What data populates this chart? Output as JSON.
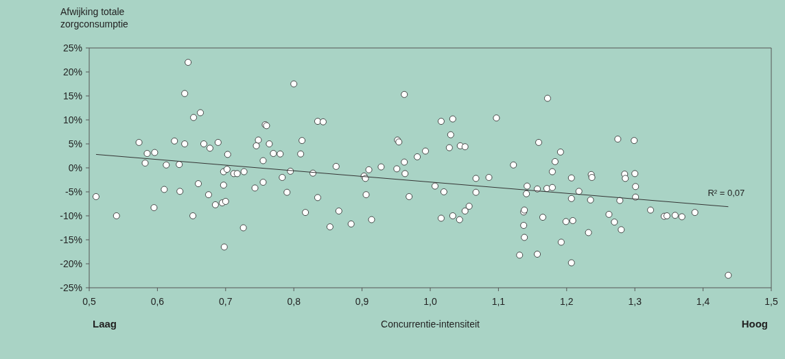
{
  "chart_data": {
    "type": "scatter",
    "ylabel": "Afwijking totale zorgconsumptie",
    "xlabel": "Concurrentie-intensiteit",
    "annotations": [
      "Laag",
      "Hoog",
      {
        "text": "R² = 0,07",
        "x": 1.437,
        "y": -8.1
      }
    ],
    "xlim": [
      0.5,
      1.5
    ],
    "xticks": [
      {
        "value": 0.5,
        "label": "0,5"
      },
      {
        "value": 0.6,
        "label": "0,6"
      },
      {
        "value": 0.7,
        "label": "0,7"
      },
      {
        "value": 0.8,
        "label": "0,8"
      },
      {
        "value": 0.9,
        "label": "0,9"
      },
      {
        "value": 1.0,
        "label": "1,0"
      },
      {
        "value": 1.1,
        "label": "1,1"
      },
      {
        "value": 1.2,
        "label": "1,2"
      },
      {
        "value": 1.3,
        "label": "1,3"
      },
      {
        "value": 1.4,
        "label": "1,4"
      },
      {
        "value": 1.5,
        "label": "1,5"
      }
    ],
    "ylim": [
      -25,
      25
    ],
    "yticks": [
      {
        "value": -25,
        "label": "-25%"
      },
      {
        "value": -20,
        "label": "-20%"
      },
      {
        "value": -15,
        "label": "-15%"
      },
      {
        "value": -10,
        "label": "-10%"
      },
      {
        "value": -5,
        "label": "-5%"
      },
      {
        "value": 0,
        "label": "0%"
      },
      {
        "value": 5,
        "label": "5%"
      },
      {
        "value": 10,
        "label": "10%"
      },
      {
        "value": 15,
        "label": "15%"
      },
      {
        "value": 20,
        "label": "20%"
      },
      {
        "value": 25,
        "label": "25%"
      }
    ],
    "grid": false,
    "series": [
      {
        "marker": "circle",
        "color": "#ffffff",
        "x": [
          0.51,
          0.54,
          0.573,
          0.582,
          0.585,
          0.596,
          0.595,
          0.61,
          0.613,
          0.625,
          0.632,
          0.633,
          0.64,
          0.64,
          0.645,
          0.653,
          0.652,
          0.66,
          0.663,
          0.668,
          0.675,
          0.677,
          0.685,
          0.689,
          0.695,
          0.697,
          0.697,
          0.698,
          0.7,
          0.702,
          0.703,
          0.712,
          0.717,
          0.727,
          0.726,
          0.743,
          0.745,
          0.748,
          0.755,
          0.755,
          0.758,
          0.76,
          0.764,
          0.77,
          0.78,
          0.783,
          0.79,
          0.795,
          0.8,
          0.81,
          0.812,
          0.817,
          0.828,
          0.835,
          0.835,
          0.843,
          0.853,
          0.862,
          0.866,
          0.884,
          0.903,
          0.905,
          0.906,
          0.91,
          0.914,
          0.928,
          0.951,
          0.952,
          0.954,
          0.962,
          0.962,
          0.963,
          0.969,
          0.981,
          0.993,
          1.007,
          1.016,
          1.016,
          1.02,
          1.028,
          1.03,
          1.033,
          1.033,
          1.044,
          1.043,
          1.051,
          1.051,
          1.057,
          1.067,
          1.067,
          1.086,
          1.097,
          1.122,
          1.137,
          1.138,
          1.137,
          1.138,
          1.131,
          1.142,
          1.141,
          1.157,
          1.159,
          1.157,
          1.165,
          1.172,
          1.171,
          1.179,
          1.179,
          1.183,
          1.191,
          1.192,
          1.199,
          1.207,
          1.207,
          1.207,
          1.209,
          1.218,
          1.232,
          1.235,
          1.236,
          1.237,
          1.262,
          1.27,
          1.275,
          1.278,
          1.28,
          1.285,
          1.286,
          1.299,
          1.3,
          1.301,
          1.301,
          1.323,
          1.343,
          1.347,
          1.359,
          1.369,
          1.388,
          1.437
        ],
        "values": [
          -6,
          -10,
          5.3,
          1,
          3,
          3.2,
          -8.3,
          -4.5,
          0.6,
          5.6,
          0.7,
          -4.9,
          5,
          15.5,
          22,
          10.5,
          -10,
          -3.3,
          11.5,
          5,
          -5.6,
          4.1,
          -7.7,
          5.3,
          -7.3,
          -3.6,
          -0.8,
          -16.5,
          -7,
          -0.3,
          2.8,
          -1.2,
          -1.2,
          -0.8,
          -12.5,
          -4.2,
          4.6,
          5.8,
          1.5,
          -3,
          9,
          8.8,
          5,
          3,
          2.9,
          -2,
          -5.1,
          -0.7,
          17.5,
          2.9,
          5.7,
          -9.3,
          -1.1,
          9.7,
          -6.2,
          9.6,
          -12.3,
          0.3,
          -9,
          -11.7,
          -1.7,
          -2.2,
          -5.6,
          -0.4,
          -10.8,
          0.2,
          -0.2,
          5.8,
          5.4,
          15.3,
          1.2,
          -1.2,
          -6,
          2.3,
          3.5,
          -3.8,
          -10.5,
          9.7,
          -5,
          4.2,
          6.9,
          -10,
          10.2,
          4.6,
          -10.8,
          4.4,
          -9,
          -8,
          -2.2,
          -5.1,
          -2,
          10.4,
          0.6,
          -9.2,
          -8.8,
          -12,
          -14.5,
          -18.2,
          -3.8,
          -5.4,
          -4.4,
          5.3,
          -18,
          -10.3,
          14.5,
          -4.3,
          -4.1,
          -0.8,
          1.3,
          3.3,
          -15.5,
          -11.2,
          -2.1,
          -6.4,
          -19.8,
          -11,
          -4.9,
          -13.5,
          -6.7,
          -1.4,
          -2,
          -9.7,
          -11.3,
          6,
          -6.8,
          -12.9,
          -1.3,
          -2.2,
          5.7,
          -1.2,
          -3.9,
          -6.1,
          -8.8,
          -10.1,
          -10,
          -9.9,
          -10.2,
          -9.3,
          -22.4
        ]
      },
      {
        "type": "line",
        "marker": "none",
        "color": "#333333",
        "x": [
          0.51,
          1.437
        ],
        "values": [
          2.8,
          -8.1
        ]
      }
    ]
  }
}
